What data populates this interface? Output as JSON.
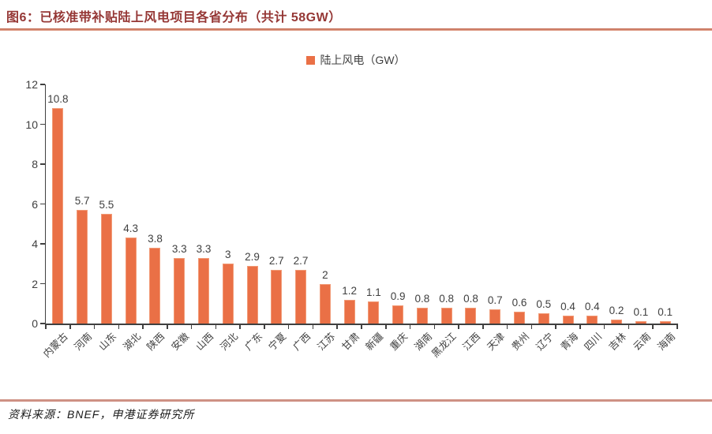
{
  "title": "图6：已核准带补贴陆上风电项目各省分布（共计 58GW）",
  "legend": {
    "label": "陆上风电（GW）"
  },
  "source": "资料来源：BNEF，申港证券研究所",
  "colors": {
    "bar": "#ea7046",
    "bar_border": "#f29b77",
    "title_text": "#953735",
    "title_rule": "#bd5f46",
    "footer_rule": "#ce9184",
    "axis": "#404040",
    "text": "#404040"
  },
  "chart_data": {
    "type": "bar",
    "title": "已核准带补贴陆上风电项目各省分布（共计 58GW）",
    "legend_entries": [
      "陆上风电（GW）"
    ],
    "legend_position": "top-center",
    "grid": false,
    "xlabel": "",
    "ylabel": "",
    "ylim": [
      0,
      12
    ],
    "yticks": [
      0,
      2,
      4,
      6,
      8,
      10,
      12
    ],
    "categories": [
      "内蒙古",
      "河南",
      "山东",
      "湖北",
      "陕西",
      "安徽",
      "山西",
      "河北",
      "广东",
      "宁夏",
      "广西",
      "江苏",
      "甘肃",
      "新疆",
      "重庆",
      "湖南",
      "黑龙江",
      "江西",
      "天津",
      "贵州",
      "辽宁",
      "青海",
      "四川",
      "吉林",
      "云南",
      "海南"
    ],
    "values": [
      10.8,
      5.7,
      5.5,
      4.3,
      3.8,
      3.3,
      3.3,
      3,
      2.9,
      2.7,
      2.7,
      2,
      1.2,
      1.1,
      0.9,
      0.8,
      0.8,
      0.8,
      0.7,
      0.6,
      0.5,
      0.4,
      0.4,
      0.2,
      0.1,
      0.1
    ]
  }
}
